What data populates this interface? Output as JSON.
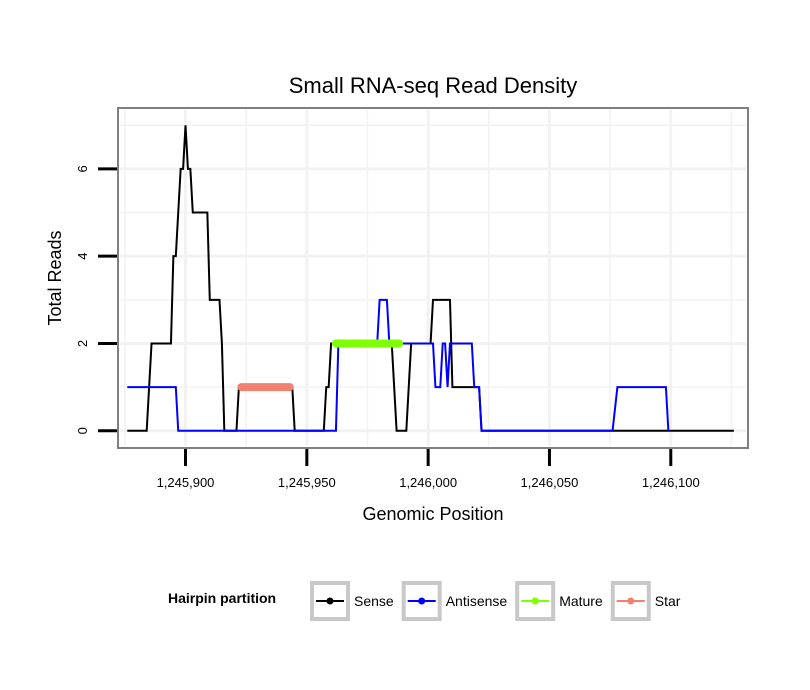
{
  "chart_data": {
    "type": "line",
    "title": "Small RNA-seq Read Density",
    "xlabel": "Genomic Position",
    "ylabel": "Total Reads",
    "xlim": [
      1245873,
      1246131
    ],
    "ylim": [
      -0.35,
      7.35
    ],
    "x_ticks": [
      1245900,
      1245950,
      1246000,
      1246050,
      1246100
    ],
    "x_tick_labels": [
      "1,245,900",
      "1,245,950",
      "1,246,000",
      "1,246,050",
      "1,246,100"
    ],
    "y_ticks": [
      0,
      2,
      4,
      6
    ],
    "y_tick_labels": [
      "0",
      "2",
      "4",
      "6"
    ],
    "grid": true,
    "legend": {
      "title": "Hairpin partition",
      "position": "bottom",
      "entries": [
        "Sense",
        "Antisense",
        "Mature",
        "Star"
      ]
    },
    "series": [
      {
        "name": "Sense",
        "color": "#000000",
        "points": [
          [
            1245876,
            0
          ],
          [
            1245884,
            0
          ],
          [
            1245886,
            2
          ],
          [
            1245894,
            2
          ],
          [
            1245895,
            4
          ],
          [
            1245896,
            4
          ],
          [
            1245897,
            5
          ],
          [
            1245898,
            6
          ],
          [
            1245899,
            6
          ],
          [
            1245900,
            7
          ],
          [
            1245901,
            6
          ],
          [
            1245902,
            6
          ],
          [
            1245903,
            5
          ],
          [
            1245909,
            5
          ],
          [
            1245910,
            3
          ],
          [
            1245914,
            3
          ],
          [
            1245915,
            2
          ],
          [
            1245916,
            0
          ],
          [
            1245921,
            0
          ],
          [
            1245922,
            1
          ],
          [
            1245944,
            1
          ],
          [
            1245945,
            0
          ],
          [
            1245957,
            0
          ],
          [
            1245958,
            1
          ],
          [
            1245959,
            1
          ],
          [
            1245960,
            2
          ],
          [
            1245985,
            2
          ],
          [
            1245987,
            0
          ],
          [
            1245991,
            0
          ],
          [
            1245993,
            2
          ],
          [
            1246001,
            2
          ],
          [
            1246002,
            3
          ],
          [
            1246009,
            3
          ],
          [
            1246010,
            1
          ],
          [
            1246021,
            1
          ],
          [
            1246022,
            0
          ],
          [
            1246126,
            0
          ]
        ]
      },
      {
        "name": "Antisense",
        "color": "#0000ff",
        "points": [
          [
            1245876,
            1
          ],
          [
            1245896,
            1
          ],
          [
            1245897,
            0
          ],
          [
            1245962,
            0
          ],
          [
            1245963,
            2
          ],
          [
            1245979,
            2
          ],
          [
            1245980,
            3
          ],
          [
            1245983,
            3
          ],
          [
            1245984,
            2
          ],
          [
            1246002,
            2
          ],
          [
            1246003,
            1
          ],
          [
            1246005,
            1
          ],
          [
            1246006,
            2
          ],
          [
            1246007,
            2
          ],
          [
            1246008,
            1
          ],
          [
            1246009,
            2
          ],
          [
            1246018,
            2
          ],
          [
            1246019,
            1
          ],
          [
            1246021,
            1
          ],
          [
            1246022,
            0
          ],
          [
            1246076,
            0
          ],
          [
            1246078,
            1
          ],
          [
            1246098,
            1
          ],
          [
            1246099,
            0
          ]
        ]
      },
      {
        "name": "Mature",
        "color": "#7fff00",
        "points": [
          [
            1245962,
            2
          ],
          [
            1245988,
            2
          ]
        ]
      },
      {
        "name": "Star",
        "color": "#f08070",
        "points": [
          [
            1245923,
            1
          ],
          [
            1245943,
            1
          ]
        ]
      }
    ]
  }
}
